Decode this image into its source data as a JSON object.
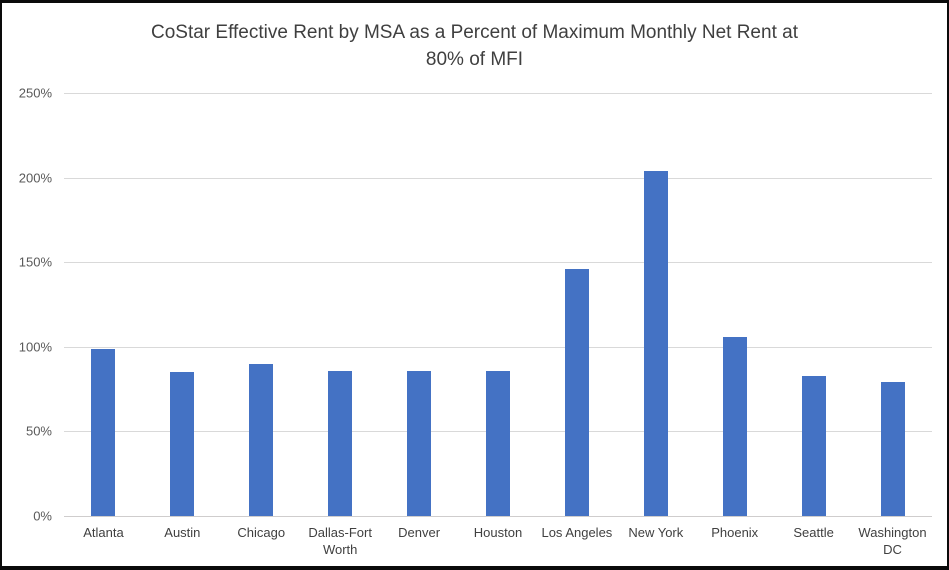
{
  "header": {
    "title_line1": "CoStar Effective Rent by MSA as a Percent of Maximum Monthly Net Rent at",
    "title_line2": "80% of MFI"
  },
  "chart_data": {
    "type": "bar",
    "title": "CoStar Effective Rent by MSA as a Percent of Maximum Monthly Net Rent at 80% of MFI",
    "categories": [
      "Atlanta",
      "Austin",
      "Chicago",
      "Dallas-Fort Worth",
      "Denver",
      "Houston",
      "Los Angeles",
      "New York",
      "Phoenix",
      "Seattle",
      "Washington DC"
    ],
    "values": [
      99,
      85,
      90,
      86,
      86,
      86,
      146,
      204,
      106,
      83,
      79
    ],
    "value_unit": "%",
    "xlabel": "",
    "ylabel": "",
    "ylim": [
      0,
      250
    ],
    "yticks": [
      0,
      50,
      100,
      150,
      200,
      250
    ],
    "ytick_labels": [
      "0%",
      "50%",
      "100%",
      "150%",
      "200%",
      "250%"
    ],
    "grid": "horizontal",
    "legend": "none",
    "bar_color": "#4472C4"
  },
  "colors": {
    "bar": "#4472C4",
    "gridline": "#D9D9D9",
    "axis_text": "#595959",
    "title_text": "#3F3F3F",
    "frame_border": "#0A0A0A",
    "background": "#FFFFFF"
  }
}
